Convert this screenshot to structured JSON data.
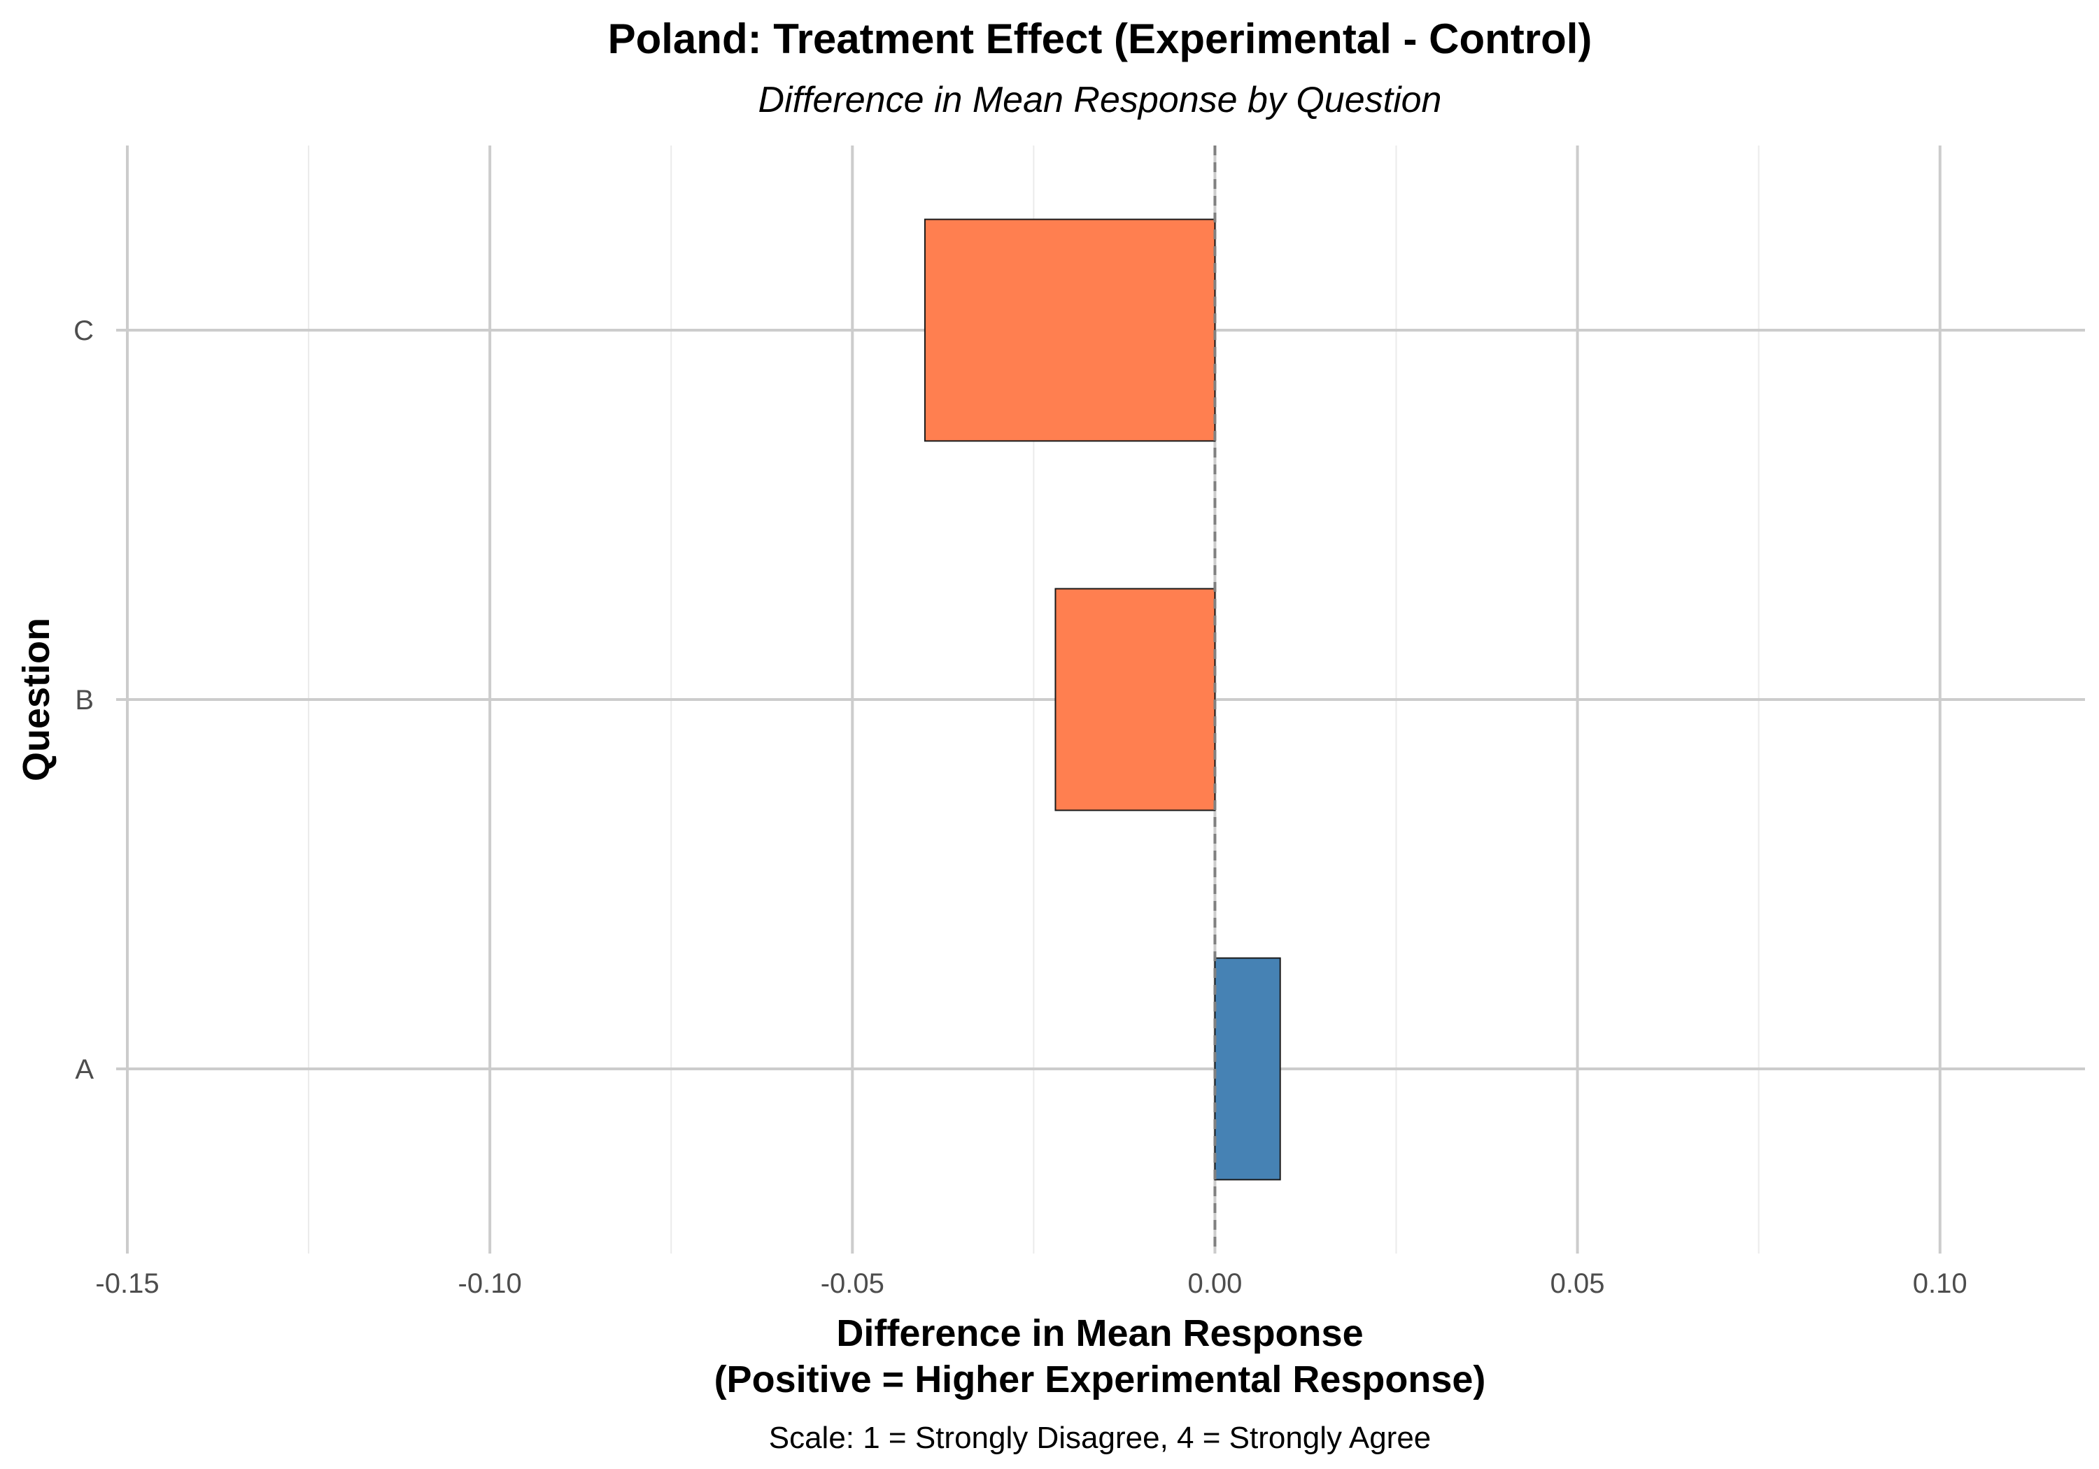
{
  "chart_data": {
    "type": "bar",
    "orientation": "horizontal",
    "title": "Poland: Treatment Effect (Experimental - Control)",
    "subtitle": "Difference in Mean Response by Question",
    "xlabel_lines": [
      "Difference in Mean Response",
      "(Positive = Higher Experimental Response)"
    ],
    "ylabel": "Question",
    "caption": "Scale: 1 = Strongly Disagree, 4 = Strongly Agree",
    "categories": [
      "A",
      "B",
      "C"
    ],
    "values": [
      0.009,
      -0.022,
      -0.04
    ],
    "xlim": [
      -0.15,
      0.12
    ],
    "x_ticks": [
      -0.15,
      -0.1,
      -0.05,
      0.0,
      0.05,
      0.1
    ],
    "x_tick_labels": [
      "-0.15",
      "-0.10",
      "-0.05",
      "0.00",
      "0.05",
      "0.10"
    ],
    "reference_line": 0,
    "colors": {
      "positive": "#4682B4",
      "negative": "#FF7F50"
    },
    "grid": true,
    "legend": "none"
  }
}
